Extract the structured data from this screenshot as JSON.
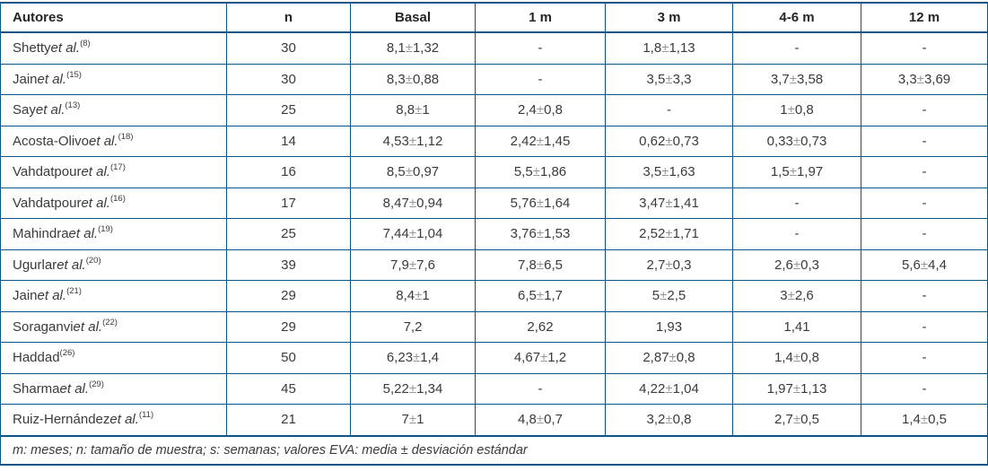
{
  "colors": {
    "border_blue": "#085586",
    "body_text": "#3a3a3a",
    "header_text": "#262626",
    "plus_minus_gray": "#979797"
  },
  "table": {
    "columns": [
      "Autores",
      "n",
      "Basal",
      "1 m",
      "3 m",
      "4-6 m",
      "12 m"
    ],
    "footnote": "m: meses; n: tamaño de muestra; s: semanas; valores EVA: media ± desviación estándar",
    "rows": [
      {
        "author": "Shetty",
        "etal": " et al.",
        "ref": "(8)",
        "n": "30",
        "basal": "8,1 ± 1,32",
        "m1": "-",
        "m3": "1,8 ± 1,13",
        "m46": "-",
        "m12": "-"
      },
      {
        "author": "Jain",
        "etal": " et al.",
        "ref": "(15)",
        "n": "30",
        "basal": "8,3 ± 0,88",
        "m1": "-",
        "m3": "3,5 ± 3,3",
        "m46": "3,7 ± 3,58",
        "m12": "3,3 ± 3,69"
      },
      {
        "author": "Say",
        "etal": " et al.",
        "ref": "(13)",
        "n": "25",
        "basal": "8,8 ± 1",
        "m1": "2,4 ± 0,8",
        "m3": "-",
        "m46": "1 ± 0,8",
        "m12": "-"
      },
      {
        "author": "Acosta-Olivo",
        "etal": " et al.",
        "ref": "(18)",
        "n": "14",
        "basal": "4,53 ± 1,12",
        "m1": "2,42 ± 1,45",
        "m3": "0,62 ± 0,73",
        "m46": "0,33 ± 0,73",
        "m12": "-"
      },
      {
        "author": "Vahdatpour",
        "etal": " et al.",
        "ref": "(17)",
        "n": "16",
        "basal": "8,5 ± 0,97",
        "m1": "5,5 ± 1,86",
        "m3": "3,5 ± 1,63",
        "m46": "1,5 ± 1,97",
        "m12": "-"
      },
      {
        "author": "Vahdatpour",
        "etal": " et al.",
        "ref": "(16)",
        "n": "17",
        "basal": "8,47 ± 0,94",
        "m1": "5,76 ± 1,64",
        "m3": "3,47 ± 1,41",
        "m46": "-",
        "m12": "-"
      },
      {
        "author": "Mahindra",
        "etal": " et al.",
        "ref": "(19)",
        "n": "25",
        "basal": "7,44 ± 1,04",
        "m1": "3,76 ± 1,53",
        "m3": "2,52 ± 1,71",
        "m46": "-",
        "m12": "-"
      },
      {
        "author": "Ugurlar",
        "etal": " et al.",
        "ref": "(20)",
        "n": "39",
        "basal": "7,9 ± 7,6",
        "m1": "7,8 ± 6,5",
        "m3": "2,7 ± 0,3",
        "m46": "2,6 ± 0,3",
        "m12": "5,6 ± 4,4"
      },
      {
        "author": "Jain",
        "etal": " et al.",
        "ref": "(21)",
        "n": "29",
        "basal": "8,4 ± 1",
        "m1": "6,5 ± 1,7",
        "m3": "5 ± 2,5",
        "m46": "3 ± 2,6",
        "m12": "-"
      },
      {
        "author": "Soraganvi",
        "etal": " et al.",
        "ref": "(22)",
        "n": "29",
        "basal": "7,2",
        "m1": "2,62",
        "m3": "1,93",
        "m46": "1,41",
        "m12": "-"
      },
      {
        "author": "Haddad",
        "etal": "",
        "ref": "(26)",
        "n": "50",
        "basal": "6,23 ± 1,4",
        "m1": "4,67 ± 1,2",
        "m3": "2,87 ± 0,8",
        "m46": "1,4 ± 0,8",
        "m12": "-"
      },
      {
        "author": "Sharma",
        "etal": " et al.",
        "ref": "(29)",
        "n": "45",
        "basal": "5,22 ± 1,34",
        "m1": "-",
        "m3": "4,22 ± 1,04",
        "m46": "1,97 ± 1,13",
        "m12": "-"
      },
      {
        "author": "Ruiz-Hernández",
        "etal": " et al.",
        "ref": "(11)",
        "n": "21",
        "basal": "7 ± 1",
        "m1": "4,8 ± 0,7",
        "m3": "3,2 ± 0,8",
        "m46": "2,7 ± 0,5",
        "m12": "1,4 ± 0,5"
      }
    ]
  }
}
